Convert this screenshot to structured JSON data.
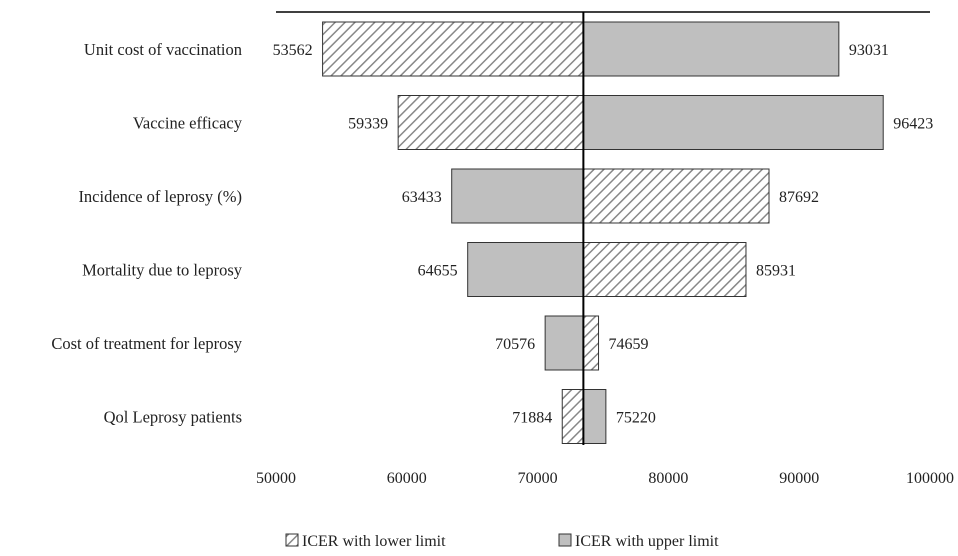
{
  "chart_data": {
    "type": "bar",
    "orientation": "horizontal-tornado",
    "title": "",
    "xlabel": "",
    "ylabel": "",
    "xlim": [
      50000,
      100000
    ],
    "x_ticks": [
      50000,
      60000,
      70000,
      80000,
      90000,
      100000
    ],
    "x_tick_labels": [
      "50000",
      "60000",
      "70000",
      "80000",
      "90000",
      "100000"
    ],
    "base_value": 73500,
    "categories": [
      "Unit cost of vaccination",
      "Vaccine efficacy",
      "Incidence of leprosy (%)",
      "Mortality due to leprosy",
      "Cost of treatment for leprosy",
      "Qol Leprosy patients"
    ],
    "series": [
      {
        "name": "ICER with lower limit",
        "pattern": "hatched",
        "values": [
          53562,
          59339,
          87692,
          85931,
          74659,
          71884
        ]
      },
      {
        "name": "ICER with upper limit",
        "pattern": "solid",
        "color": "#bfbfbf",
        "values": [
          93031,
          96423,
          63433,
          64655,
          70576,
          75220
        ]
      }
    ],
    "legend_position": "bottom",
    "grid": false
  }
}
